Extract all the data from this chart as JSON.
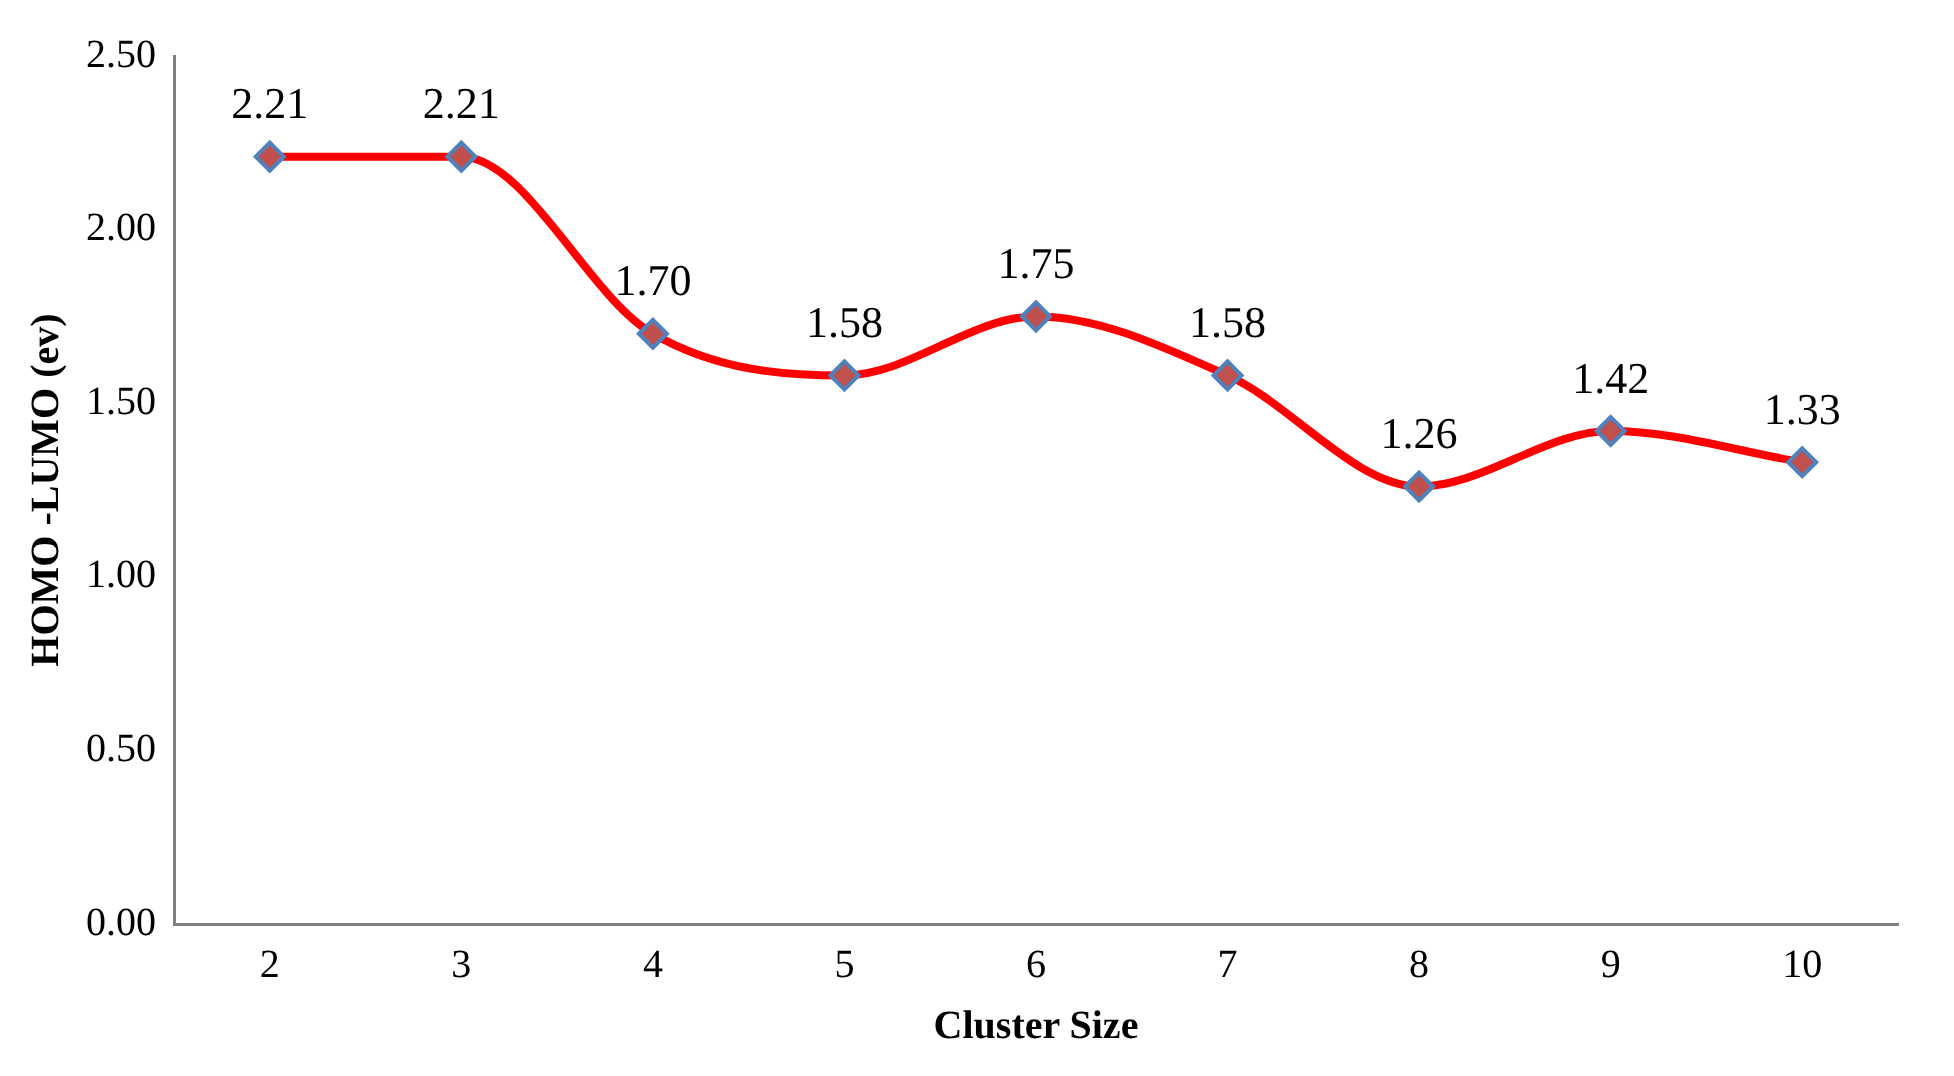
{
  "chart_data": {
    "type": "line",
    "xlabel": "Cluster Size",
    "ylabel": "HOMO -LUMO (ev)",
    "categories": [
      "2",
      "3",
      "4",
      "5",
      "6",
      "7",
      "8",
      "9",
      "10"
    ],
    "series": [
      {
        "color": "#ff0000",
        "values": [
          2.21,
          2.21,
          1.7,
          1.58,
          1.75,
          1.58,
          1.26,
          1.42,
          1.33
        ],
        "value_labels": [
          "2.21",
          "2.21",
          "1.70",
          "1.58",
          "1.75",
          "1.58",
          "1.26",
          "1.42",
          "1.33"
        ]
      }
    ],
    "ylim": [
      0,
      2.5
    ],
    "yticks": [
      {
        "value": 0,
        "label": "0.00"
      },
      {
        "value": 0.5,
        "label": "0.50"
      },
      {
        "value": 1,
        "label": "1.00"
      },
      {
        "value": 1.5,
        "label": "1.50"
      },
      {
        "value": 2,
        "label": "2.00"
      },
      {
        "value": 2.5,
        "label": "2.50"
      }
    ],
    "grid": false,
    "legend": false,
    "marker": "diamond",
    "line_style": "solid"
  }
}
